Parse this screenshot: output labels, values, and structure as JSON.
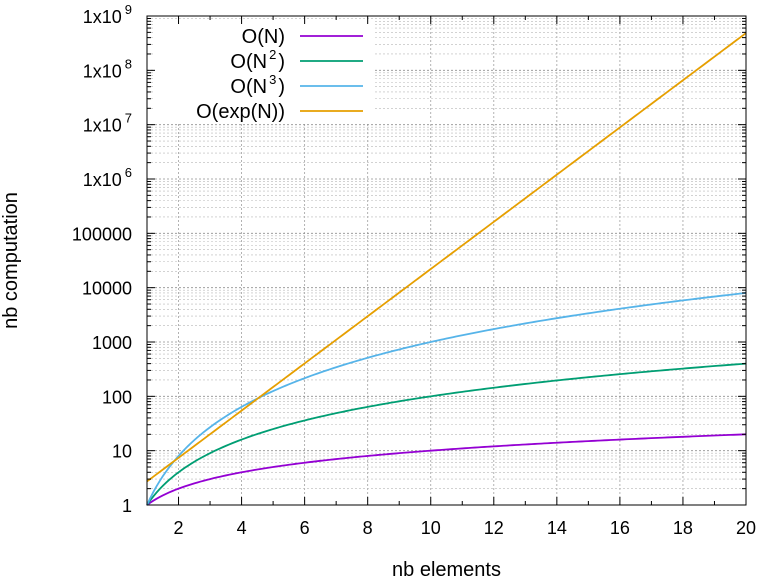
{
  "chart_data": {
    "type": "line",
    "title": "",
    "xlabel": "nb elements",
    "ylabel": "nb computation",
    "xlim": [
      1,
      20
    ],
    "ylim": [
      1,
      1000000000
    ],
    "yscale": "log",
    "grid": true,
    "legend_position": "top-left",
    "x_ticks": [
      2,
      4,
      6,
      8,
      10,
      12,
      14,
      16,
      18,
      20
    ],
    "y_ticks": [
      {
        "value": 1,
        "label": "1"
      },
      {
        "value": 10,
        "label": "10"
      },
      {
        "value": 100,
        "label": "100"
      },
      {
        "value": 1000,
        "label": "1000"
      },
      {
        "value": 10000,
        "label": "10000"
      },
      {
        "value": 100000,
        "label": "100000"
      },
      {
        "value": 1000000,
        "base": "1x10",
        "exp": "6"
      },
      {
        "value": 10000000,
        "base": "1x10",
        "exp": "7"
      },
      {
        "value": 100000000,
        "base": "1x10",
        "exp": "8"
      },
      {
        "value": 1000000000,
        "base": "1x10",
        "exp": "9"
      }
    ],
    "series": [
      {
        "name": "O(N)",
        "base": "O(N)",
        "exp": "",
        "color": "#9400d3",
        "x": [
          1,
          2,
          3,
          4,
          5,
          6,
          7,
          8,
          9,
          10,
          11,
          12,
          13,
          14,
          15,
          16,
          17,
          18,
          19,
          20
        ],
        "y": [
          1,
          2,
          3,
          4,
          5,
          6,
          7,
          8,
          9,
          10,
          11,
          12,
          13,
          14,
          15,
          16,
          17,
          18,
          19,
          20
        ]
      },
      {
        "name": "O(N2)",
        "base": "O(N",
        "exp": "2",
        "suffix": ")",
        "color": "#009e73",
        "x": [
          1,
          2,
          3,
          4,
          5,
          6,
          7,
          8,
          9,
          10,
          11,
          12,
          13,
          14,
          15,
          16,
          17,
          18,
          19,
          20
        ],
        "y": [
          1,
          4,
          9,
          16,
          25,
          36,
          49,
          64,
          81,
          100,
          121,
          144,
          169,
          196,
          225,
          256,
          289,
          324,
          361,
          400
        ]
      },
      {
        "name": "O(N3)",
        "base": "O(N",
        "exp": "3",
        "suffix": ")",
        "color": "#56b4e9",
        "x": [
          1,
          2,
          3,
          4,
          5,
          6,
          7,
          8,
          9,
          10,
          11,
          12,
          13,
          14,
          15,
          16,
          17,
          18,
          19,
          20
        ],
        "y": [
          1,
          8,
          27,
          64,
          125,
          216,
          343,
          512,
          729,
          1000,
          1331,
          1728,
          2197,
          2744,
          3375,
          4096,
          4913,
          5832,
          6859,
          8000
        ]
      },
      {
        "name": "O(exp(N))",
        "base": "O(exp(N))",
        "exp": "",
        "color": "#e69f00",
        "x": [
          1,
          2,
          3,
          4,
          5,
          6,
          7,
          8,
          9,
          10,
          11,
          12,
          13,
          14,
          15,
          16,
          17,
          18,
          19,
          20
        ],
        "y": [
          2.718,
          7.389,
          20.09,
          54.6,
          148.4,
          403.4,
          1096.6,
          2981,
          8103,
          22026,
          59874,
          162755,
          442413,
          1202604,
          3269017,
          8886111,
          24154953,
          65659969,
          178482301,
          485165195
        ]
      }
    ]
  }
}
